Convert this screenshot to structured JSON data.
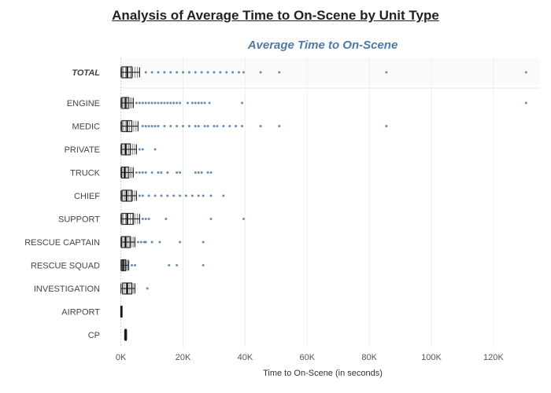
{
  "chart_data": {
    "type": "box",
    "title": "Analysis of Average Time to On-Scene by Unit Type",
    "subtitle": "Average Time to On-Scene",
    "xlabel": "Time to On-Scene (in seconds)",
    "xlim": [
      -6000,
      136000
    ],
    "xticks": [
      0,
      20000,
      40000,
      60000,
      80000,
      100000,
      120000
    ],
    "xtick_labels": [
      "0K",
      "20K",
      "40K",
      "60K",
      "80K",
      "100K",
      "120K"
    ],
    "grid": "vertical",
    "series_color": "#4e79a7",
    "rows": [
      {
        "label": "TOTAL",
        "total": true,
        "q1": 300,
        "median": 2000,
        "q3": 3500,
        "whisker_low": 0,
        "whisker_high": 6000,
        "outliers": [
          8000,
          10000,
          12000,
          14000,
          16000,
          18000,
          20000,
          22000,
          24000,
          26000,
          28000,
          30000,
          32000,
          34000,
          36000,
          38000,
          39500,
          45000,
          51000,
          85500,
          130500
        ]
      },
      {
        "label": "ENGINE",
        "q1": 300,
        "median": 1500,
        "q3": 2500,
        "whisker_low": 0,
        "whisker_high": 4000,
        "outliers": [
          5000,
          6000,
          7000,
          8000,
          9000,
          10000,
          11000,
          12000,
          13000,
          14000,
          15000,
          16000,
          17000,
          18000,
          19000,
          21500,
          23000,
          24000,
          25000,
          26000,
          27000,
          28500,
          39000,
          130500
        ]
      },
      {
        "label": "MEDIC",
        "q1": 300,
        "median": 2000,
        "q3": 3500,
        "whisker_low": 0,
        "whisker_high": 5500,
        "outliers": [
          7000,
          8000,
          9000,
          10000,
          11000,
          12000,
          14000,
          16000,
          18000,
          20000,
          22000,
          24000,
          25000,
          27000,
          28000,
          30000,
          31000,
          33000,
          35000,
          37000,
          39000,
          45000,
          51000,
          85500
        ]
      },
      {
        "label": "PRIVATE",
        "q1": 200,
        "median": 1500,
        "q3": 3000,
        "whisker_low": 0,
        "whisker_high": 5000,
        "outliers": [
          6000,
          7000,
          11000
        ]
      },
      {
        "label": "TRUCK",
        "q1": 200,
        "median": 1200,
        "q3": 2500,
        "whisker_low": 0,
        "whisker_high": 4000,
        "outliers": [
          5000,
          6000,
          7000,
          8000,
          10000,
          12000,
          13000,
          15000,
          18000,
          19000,
          24000,
          25000,
          26000,
          28000,
          29000
        ]
      },
      {
        "label": "CHIEF",
        "q1": 300,
        "median": 1800,
        "q3": 3500,
        "whisker_low": 0,
        "whisker_high": 5000,
        "outliers": [
          6000,
          7000,
          9000,
          11000,
          13000,
          15000,
          17000,
          19000,
          21000,
          23000,
          25000,
          26500,
          29000,
          33000
        ]
      },
      {
        "label": "SUPPORT",
        "q1": 300,
        "median": 2000,
        "q3": 4000,
        "whisker_low": 0,
        "whisker_high": 6000,
        "outliers": [
          7000,
          8000,
          9000,
          14500,
          29000,
          39500
        ]
      },
      {
        "label": "RESCUE CAPTAIN",
        "q1": 200,
        "median": 1500,
        "q3": 3000,
        "whisker_low": 0,
        "whisker_high": 4500,
        "outliers": [
          5500,
          6500,
          7500,
          8000,
          10000,
          12500,
          19000,
          26500
        ]
      },
      {
        "label": "RESCUE SQUAD",
        "q1": 100,
        "median": 700,
        "q3": 1500,
        "whisker_low": 0,
        "whisker_high": 2500,
        "outliers": [
          3500,
          4500,
          15500,
          18000,
          26500
        ]
      },
      {
        "label": "INVESTIGATION",
        "q1": 500,
        "median": 2000,
        "q3": 3500,
        "whisker_low": 0,
        "whisker_high": 4500,
        "outliers": [
          8500
        ]
      },
      {
        "label": "AIRPORT",
        "q1": 0,
        "median": 50,
        "q3": 100,
        "whisker_low": 0,
        "whisker_high": 150,
        "outliers": []
      },
      {
        "label": "CP",
        "q1": 1300,
        "median": 1500,
        "q3": 1700,
        "whisker_low": 1200,
        "whisker_high": 1800,
        "outliers": []
      }
    ]
  }
}
